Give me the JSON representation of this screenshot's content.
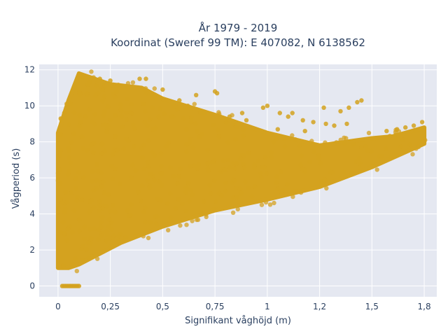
{
  "chart_data": {
    "type": "scatter",
    "title_line1": "År 1979 - 2019",
    "title_line2": "Koordinat (Sweref 99 TM): E 407082, N 6138562",
    "xlabel": "Signifikant våghöjd (m)",
    "ylabel": "Vågperiod (s)",
    "xlim": [
      -0.09,
      1.81
    ],
    "ylim": [
      -0.6,
      12.3
    ],
    "x_ticks": [
      0,
      0.25,
      0.5,
      0.75,
      1,
      1.25,
      1.5,
      1.75
    ],
    "x_tick_labels": [
      "0",
      "0,25",
      "0,5",
      "0,75",
      "1",
      "1,2",
      "1,5",
      "1,8"
    ],
    "y_ticks": [
      0,
      2,
      4,
      6,
      8,
      10,
      12
    ],
    "y_tick_labels": [
      "0",
      "2",
      "4",
      "6",
      "8",
      "10",
      "12"
    ],
    "grid": true,
    "legend": "none",
    "colors": {
      "marker": "#d4a21f",
      "plot_background": "#e5e8f1",
      "grid": "#ffffff",
      "text": "#2a3f5f"
    },
    "density_region": {
      "description_outline": [
        [
          0.0,
          1.0
        ],
        [
          0.05,
          1.0
        ],
        [
          0.1,
          1.2
        ],
        [
          0.3,
          2.4
        ],
        [
          0.5,
          3.3
        ],
        [
          0.75,
          4.2
        ],
        [
          1.0,
          4.8
        ],
        [
          1.25,
          5.5
        ],
        [
          1.5,
          6.6
        ],
        [
          1.75,
          7.9
        ],
        [
          1.75,
          8.8
        ],
        [
          1.6,
          8.3
        ],
        [
          1.5,
          8.2
        ],
        [
          1.25,
          7.8
        ],
        [
          1.0,
          8.5
        ],
        [
          0.75,
          9.5
        ],
        [
          0.5,
          10.4
        ],
        [
          0.4,
          11.0
        ],
        [
          0.25,
          11.2
        ],
        [
          0.1,
          11.8
        ],
        [
          0.05,
          10.3
        ],
        [
          0.0,
          8.5
        ]
      ]
    },
    "outlier_points": [
      [
        0.12,
        11.6
      ],
      [
        0.15,
        11.3
      ],
      [
        0.2,
        11.5
      ],
      [
        0.25,
        11.4
      ],
      [
        0.39,
        11.5
      ],
      [
        0.42,
        11.5
      ],
      [
        0.5,
        10.9
      ],
      [
        0.75,
        10.8
      ],
      [
        0.76,
        10.7
      ],
      [
        0.66,
        10.6
      ],
      [
        1.0,
        10.0
      ],
      [
        0.98,
        9.9
      ],
      [
        1.06,
        9.6
      ],
      [
        1.1,
        9.4
      ],
      [
        1.17,
        9.2
      ],
      [
        1.22,
        9.1
      ],
      [
        1.28,
        9.0
      ],
      [
        1.32,
        8.9
      ],
      [
        1.38,
        9.0
      ],
      [
        1.45,
        10.3
      ],
      [
        1.43,
        10.2
      ],
      [
        1.39,
        9.9
      ],
      [
        1.27,
        9.9
      ],
      [
        1.35,
        9.7
      ],
      [
        1.12,
        9.6
      ],
      [
        0.3,
        9.8
      ],
      [
        0.35,
        10.1
      ],
      [
        0.45,
        9.9
      ],
      [
        0.55,
        10.0
      ],
      [
        0.62,
        10.0
      ],
      [
        0.7,
        9.6
      ],
      [
        0.82,
        9.4
      ],
      [
        0.88,
        9.6
      ],
      [
        1.57,
        8.6
      ],
      [
        1.62,
        8.7
      ],
      [
        1.7,
        8.9
      ],
      [
        1.74,
        9.1
      ],
      [
        1.66,
        8.8
      ],
      [
        0.58,
        10.3
      ],
      [
        0.6,
        9.3
      ],
      [
        0.9,
        9.2
      ],
      [
        1.05,
        8.7
      ],
      [
        1.18,
        8.6
      ],
      [
        0.45,
        10.6
      ],
      [
        0.28,
        10.8
      ]
    ],
    "zero_period_segment": {
      "x_from": 0.02,
      "x_to": 0.1,
      "y": 0
    }
  }
}
